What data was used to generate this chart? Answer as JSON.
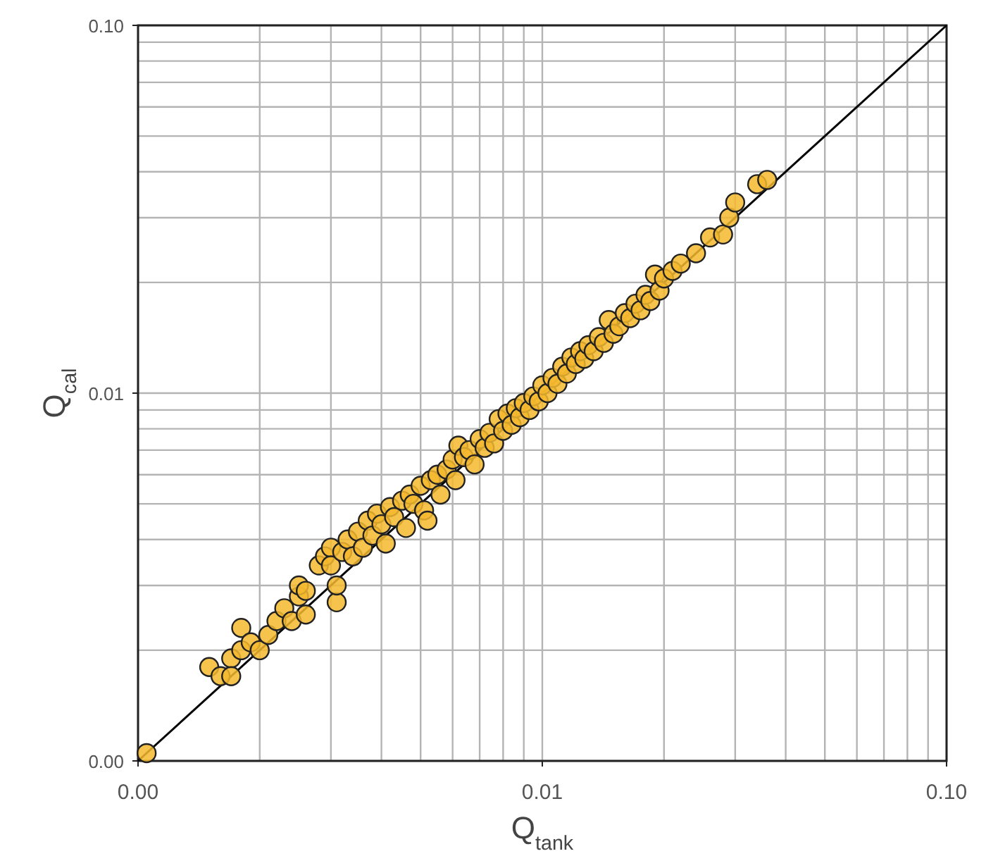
{
  "chart_data": {
    "type": "scatter",
    "xlabel": "Q$_{tank}$",
    "ylabel": "Q$_{cal}$",
    "log": "xy",
    "grid": true,
    "marker": "circle",
    "xlim": [
      0.001,
      0.1
    ],
    "ylim": [
      0.001,
      0.1
    ],
    "xticks": [
      {
        "value": 0.001,
        "label": "0.00"
      },
      {
        "value": 0.01,
        "label": "0.01"
      },
      {
        "value": 0.1,
        "label": "0.10"
      }
    ],
    "yticks": [
      {
        "value": 0.001,
        "label": "0.00"
      },
      {
        "value": 0.01,
        "label": "0.01"
      },
      {
        "value": 0.1,
        "label": "0.10"
      }
    ],
    "series": [
      {
        "type": "line",
        "color": "#000000",
        "marker": "none",
        "line_style": "solid",
        "x": [
          0.001,
          0.1
        ],
        "values": [
          0.001,
          0.1
        ]
      },
      {
        "color": "#f5b82e",
        "x": [
          0.00105,
          0.0015,
          0.0016,
          0.0017,
          0.0017,
          0.0018,
          0.0018,
          0.0019,
          0.002,
          0.0021,
          0.0022,
          0.0023,
          0.0024,
          0.0025,
          0.0025,
          0.0026,
          0.0026,
          0.0028,
          0.0029,
          0.003,
          0.003,
          0.0031,
          0.0031,
          0.0032,
          0.0033,
          0.0034,
          0.0035,
          0.0036,
          0.0037,
          0.0038,
          0.0039,
          0.004,
          0.0041,
          0.0042,
          0.0043,
          0.0045,
          0.0046,
          0.0047,
          0.0048,
          0.005,
          0.0051,
          0.0052,
          0.0053,
          0.0055,
          0.0056,
          0.0058,
          0.006,
          0.0061,
          0.0062,
          0.0064,
          0.0066,
          0.0068,
          0.007,
          0.0072,
          0.0074,
          0.0076,
          0.0078,
          0.008,
          0.0082,
          0.0084,
          0.0086,
          0.0088,
          0.009,
          0.0093,
          0.0095,
          0.0098,
          0.01,
          0.0103,
          0.0106,
          0.0109,
          0.0112,
          0.0115,
          0.0118,
          0.0121,
          0.0124,
          0.0127,
          0.013,
          0.0134,
          0.0138,
          0.0142,
          0.0146,
          0.015,
          0.0155,
          0.016,
          0.0165,
          0.017,
          0.0175,
          0.018,
          0.0185,
          0.019,
          0.0195,
          0.02,
          0.021,
          0.022,
          0.024,
          0.026,
          0.028,
          0.029,
          0.03,
          0.034,
          0.036
        ],
        "values": [
          0.00105,
          0.0018,
          0.0017,
          0.0019,
          0.0017,
          0.002,
          0.0023,
          0.0021,
          0.002,
          0.0022,
          0.0024,
          0.0026,
          0.0024,
          0.0028,
          0.003,
          0.0029,
          0.0025,
          0.0034,
          0.0036,
          0.0038,
          0.0034,
          0.0027,
          0.003,
          0.0037,
          0.004,
          0.0036,
          0.0042,
          0.0038,
          0.0045,
          0.0041,
          0.0047,
          0.0044,
          0.0039,
          0.0049,
          0.0046,
          0.0051,
          0.0043,
          0.0053,
          0.005,
          0.0056,
          0.0048,
          0.0045,
          0.0058,
          0.006,
          0.0053,
          0.0062,
          0.0066,
          0.0058,
          0.0072,
          0.0067,
          0.007,
          0.0064,
          0.0075,
          0.0071,
          0.0078,
          0.0073,
          0.0085,
          0.0079,
          0.0088,
          0.0082,
          0.0091,
          0.0086,
          0.0094,
          0.009,
          0.0098,
          0.0095,
          0.0105,
          0.01,
          0.011,
          0.0106,
          0.0118,
          0.0113,
          0.0125,
          0.012,
          0.013,
          0.0124,
          0.0135,
          0.013,
          0.0142,
          0.0137,
          0.0158,
          0.0145,
          0.0152,
          0.0165,
          0.016,
          0.0175,
          0.0168,
          0.0185,
          0.0178,
          0.021,
          0.019,
          0.0205,
          0.0215,
          0.0225,
          0.024,
          0.0265,
          0.027,
          0.03,
          0.033,
          0.037,
          0.038
        ]
      }
    ]
  }
}
